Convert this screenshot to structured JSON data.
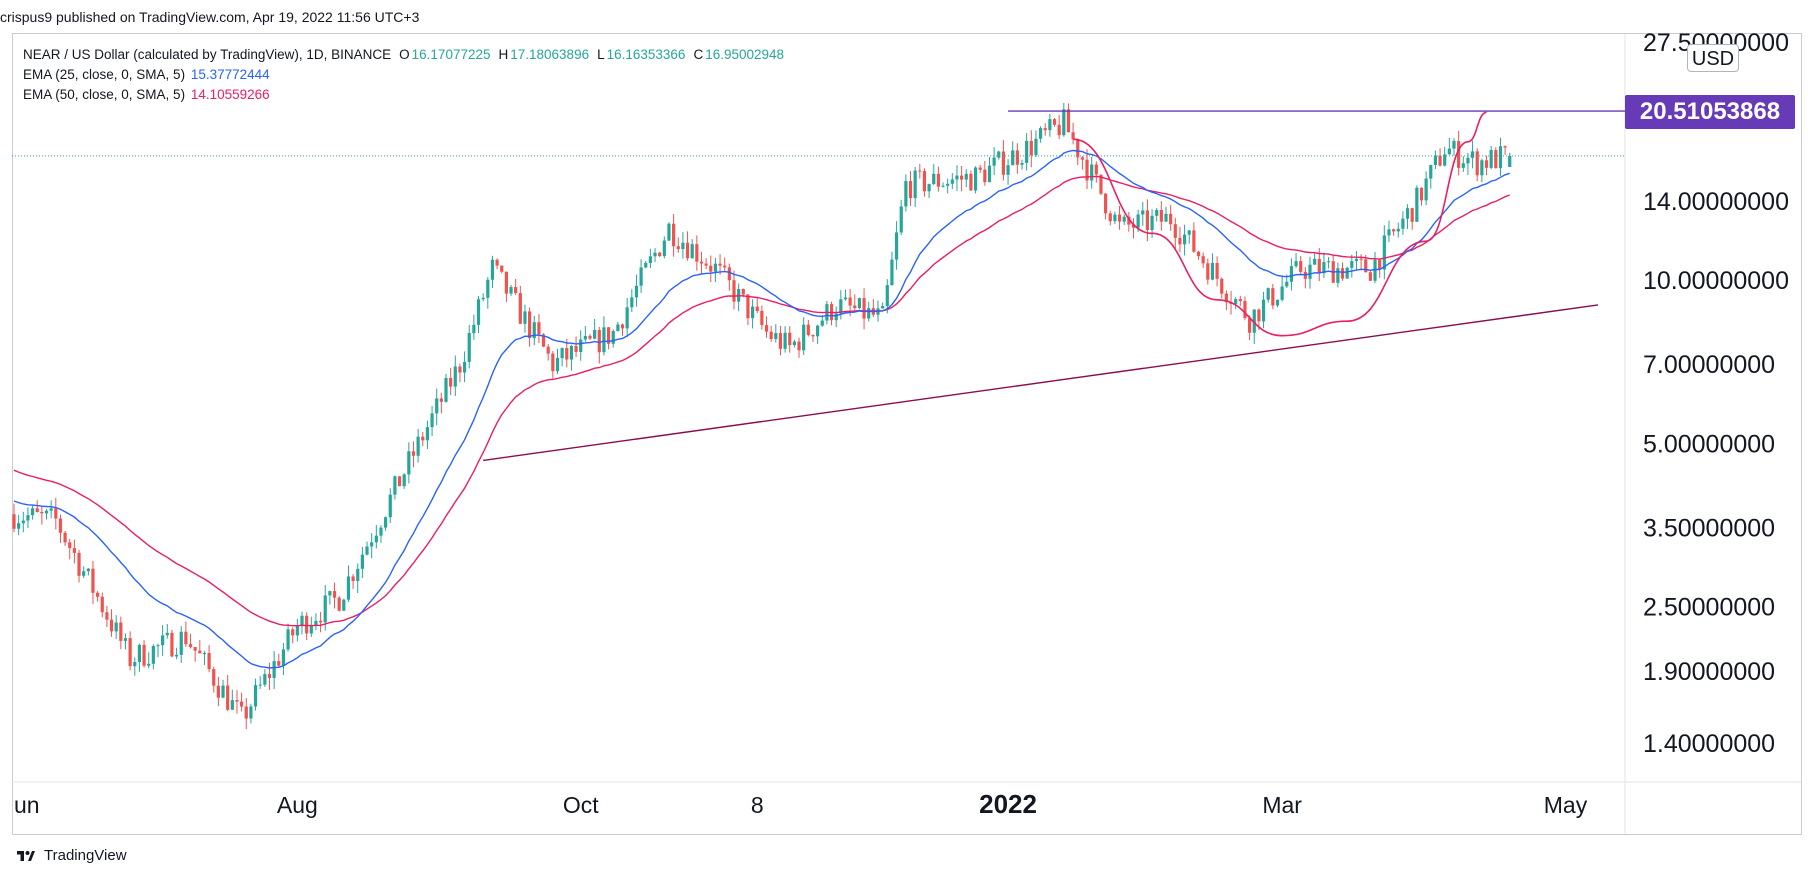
{
  "publisher_line": "crispus9 published on TradingView.com, Apr 19, 2022 11:56 UTC+3",
  "brand": "TradingView",
  "legend": {
    "symbol_line": "NEAR / US Dollar (calculated by TradingView), 1D, BINANCE",
    "o_label": "O",
    "o_value": "16.17077225",
    "h_label": "H",
    "h_value": "17.18063896",
    "l_label": "L",
    "l_value": "16.16353366",
    "c_label": "C",
    "c_value": "16.95002948",
    "ema25_label": "EMA (25, close, 0, SMA, 5)",
    "ema25_value": "15.37772444",
    "ema50_label": "EMA (50, close, 0, SMA, 5)",
    "ema50_value": "14.10559266"
  },
  "currency": "USD",
  "price_badge": "20.51053868",
  "colors": {
    "up": "#26a69a",
    "down": "#ef5350",
    "ema25": "#2962ff",
    "ema50": "#e91e63",
    "trendline": "#880e4f",
    "resistance": "#673ab7",
    "cup": "#e91e63",
    "grid_text": "#131722"
  },
  "chart_data": {
    "type": "candlestick",
    "symbol": "NEAR / US Dollar",
    "interval": "1D",
    "exchange": "BINANCE",
    "y_scale": "log",
    "y_ticks": [
      "27.50000000",
      "14.00000000",
      "10.00000000",
      "7.00000000",
      "5.00000000",
      "3.50000000",
      "2.50000000",
      "1.90000000",
      "1.40000000"
    ],
    "y_tick_values": [
      27.5,
      14,
      10,
      7,
      5,
      3.5,
      2.5,
      1.9,
      1.4
    ],
    "x_ticks": [
      "un",
      "Aug",
      "Oct",
      "8",
      "2022",
      "Mar",
      "May"
    ],
    "x_tick_dates": [
      "2021-06-01",
      "2021-08-01",
      "2021-10-01",
      "2021-11-08",
      "2022-01-01",
      "2022-03-01",
      "2022-05-01"
    ],
    "x_range": [
      "2021-06-01",
      "2022-05-08"
    ],
    "y_range": [
      1.05,
      29.5
    ],
    "last_close": 16.95002948,
    "resistance_level": 20.51053868,
    "resistance_from": "2022-01-01",
    "trendline": {
      "start": [
        "2021-09-10",
        4.65
      ],
      "end": [
        "2022-05-08",
        9.0
      ]
    },
    "cup_curve_points": [
      [
        "2022-01-15",
        18.2
      ],
      [
        "2022-02-01",
        12.2
      ],
      [
        "2022-02-15",
        9.2
      ],
      [
        "2022-03-01",
        7.9
      ],
      [
        "2022-03-15",
        8.4
      ],
      [
        "2022-04-01",
        11.8
      ],
      [
        "2022-04-10",
        18.0
      ],
      [
        "2022-04-14",
        20.4
      ]
    ],
    "ema_visible_start": "2021-06-01",
    "ema_visible_end": "2022-04-19",
    "ema_start_values": {
      "ema25": 3.95,
      "ema50": 4.5
    },
    "ema25_final": 15.37772444,
    "ema50_final": 14.10559266,
    "price_anchors": [
      [
        "2021-06-01",
        3.7
      ],
      [
        "2021-06-10",
        3.6
      ],
      [
        "2021-06-18",
        2.7
      ],
      [
        "2021-06-26",
        2.0
      ],
      [
        "2021-07-08",
        2.2
      ],
      [
        "2021-07-20",
        1.55
      ],
      [
        "2021-08-01",
        2.3
      ],
      [
        "2021-08-10",
        2.6
      ],
      [
        "2021-08-25",
        4.6
      ],
      [
        "2021-09-05",
        7.0
      ],
      [
        "2021-09-12",
        10.5
      ],
      [
        "2021-09-25",
        7.0
      ],
      [
        "2021-10-08",
        8.0
      ],
      [
        "2021-10-20",
        12.5
      ],
      [
        "2021-10-30",
        10.5
      ],
      [
        "2021-11-10",
        8.0
      ],
      [
        "2021-11-15",
        7.5
      ],
      [
        "2021-11-25",
        9.0
      ],
      [
        "2021-12-05",
        8.5
      ],
      [
        "2021-12-10",
        15.0
      ],
      [
        "2021-12-25",
        15.5
      ],
      [
        "2022-01-05",
        17.5
      ],
      [
        "2022-01-13",
        19.5
      ],
      [
        "2022-01-25",
        12.5
      ],
      [
        "2022-02-05",
        13.0
      ],
      [
        "2022-02-22",
        8.5
      ],
      [
        "2022-03-05",
        10.5
      ],
      [
        "2022-03-20",
        10.5
      ],
      [
        "2022-03-30",
        14.0
      ],
      [
        "2022-04-05",
        17.5
      ],
      [
        "2022-04-12",
        16.5
      ],
      [
        "2022-04-19",
        16.95
      ]
    ]
  }
}
